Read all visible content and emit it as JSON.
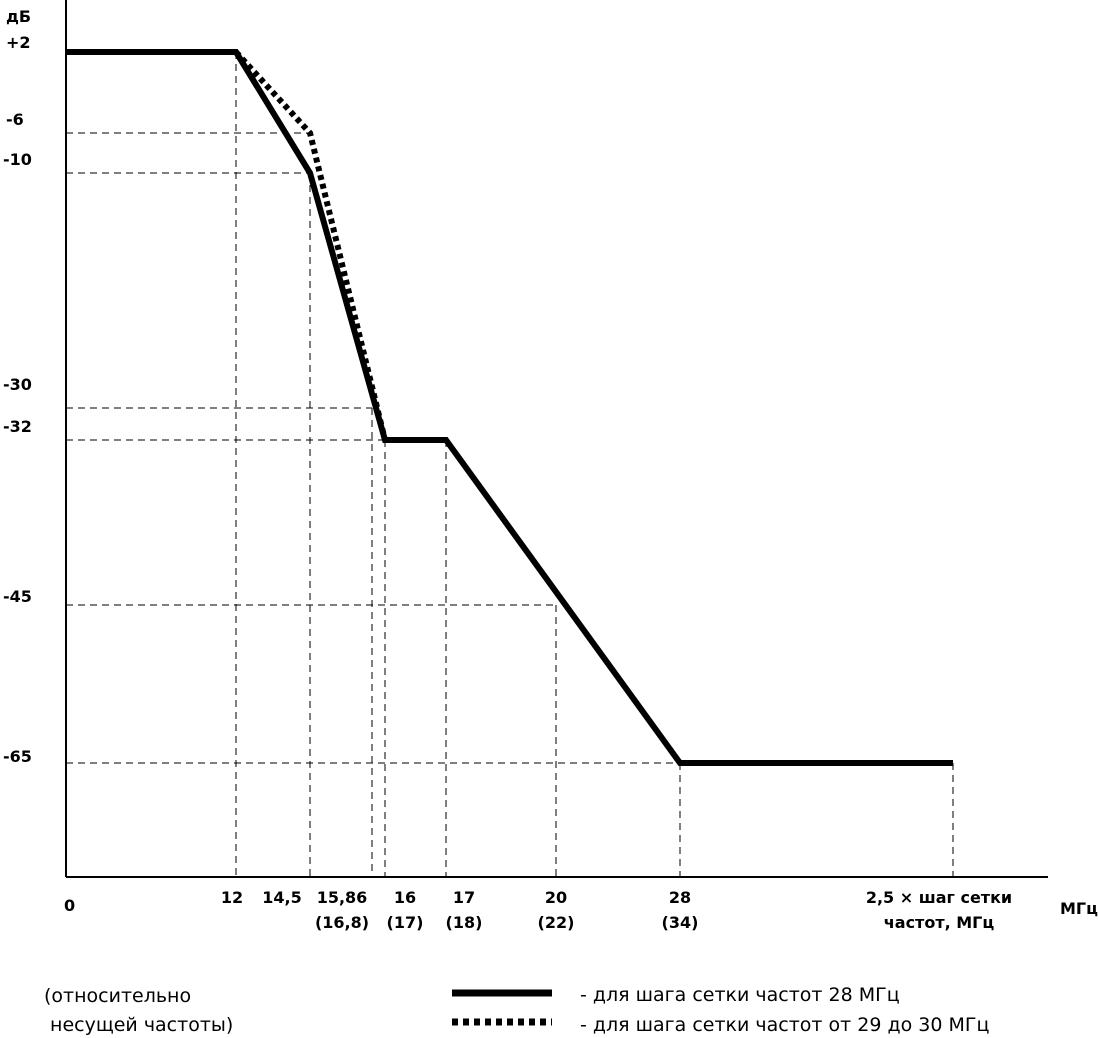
{
  "chart_data": {
    "type": "line",
    "title": "",
    "ylabel": "дБ",
    "ylabel_note": [
      "(относительно",
      " несущей частоты)"
    ],
    "xlabel": "МГц",
    "x_ticks": [
      {
        "value": 0,
        "label": "0",
        "alt": ""
      },
      {
        "value": 12,
        "label": "12",
        "alt": ""
      },
      {
        "value": 14.5,
        "label": "14,5",
        "alt": ""
      },
      {
        "value": 15.86,
        "label": "15,86",
        "alt": "(16,8)"
      },
      {
        "value": 16,
        "label": "16",
        "alt": "(17)"
      },
      {
        "value": 17,
        "label": "17",
        "alt": "(18)"
      },
      {
        "value": 20,
        "label": "20",
        "alt": "(22)"
      },
      {
        "value": 28,
        "label": "28",
        "alt": "(34)"
      },
      {
        "value": 35,
        "label": "2,5 × шаг сетки",
        "alt": "частот, МГц"
      }
    ],
    "y_ticks": [
      {
        "value": 2,
        "label": "+2"
      },
      {
        "value": -6,
        "label": "-6"
      },
      {
        "value": -10,
        "label": "-10"
      },
      {
        "value": -30,
        "label": "-30"
      },
      {
        "value": -32,
        "label": "-32"
      },
      {
        "value": -45,
        "label": "-45"
      },
      {
        "value": -65,
        "label": "-65"
      }
    ],
    "series": [
      {
        "name": "- для шага сетки частот 28 МГц",
        "style": "solid",
        "x": [
          0,
          12,
          14.5,
          16,
          17,
          28,
          35
        ],
        "y": [
          2,
          2,
          -10,
          -32,
          -32,
          -65,
          -65
        ]
      },
      {
        "name": "- для шага сетки частот от 29 до 30 МГц",
        "style": "dotted",
        "x": [
          12,
          14.5,
          16
        ],
        "y": [
          2,
          -6,
          -32
        ]
      }
    ],
    "legend_position": "bottom-right",
    "grid": false,
    "color": "#000000"
  }
}
